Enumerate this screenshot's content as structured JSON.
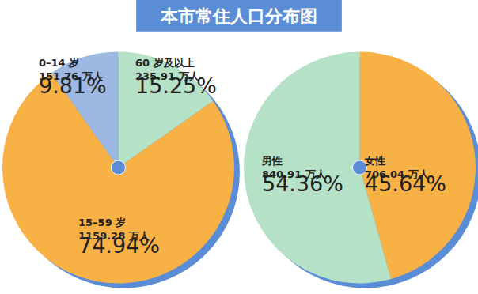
{
  "title": "本市常住人口分布图",
  "chart_data": [
    {
      "type": "pie",
      "categories": [
        "60 岁及以上",
        "15–59 岁",
        "0–14 岁"
      ],
      "values": [
        15.25,
        74.94,
        9.81
      ],
      "value_labels": [
        "15.25%",
        "74.94%",
        "9.81%"
      ],
      "counts": [
        {
          "value": 235.91,
          "label": "235.91 万人"
        },
        {
          "value": 1159.28,
          "label": "1159.28 万人"
        },
        {
          "value": 151.76,
          "label": "151.76 万人"
        }
      ],
      "colors": [
        "#b5e2c6",
        "#f8b144",
        "#9db8e2"
      ],
      "data_labels": true
    },
    {
      "type": "pie",
      "categories": [
        "女性",
        "男性"
      ],
      "values": [
        45.64,
        54.36
      ],
      "value_labels": [
        "45.64%",
        "54.36%"
      ],
      "counts": [
        {
          "value": 706.04,
          "label": "706.04 万人"
        },
        {
          "value": 840.91,
          "label": "840.91 万人"
        }
      ],
      "colors": [
        "#f8b144",
        "#b5e2c6"
      ],
      "data_labels": true
    }
  ]
}
